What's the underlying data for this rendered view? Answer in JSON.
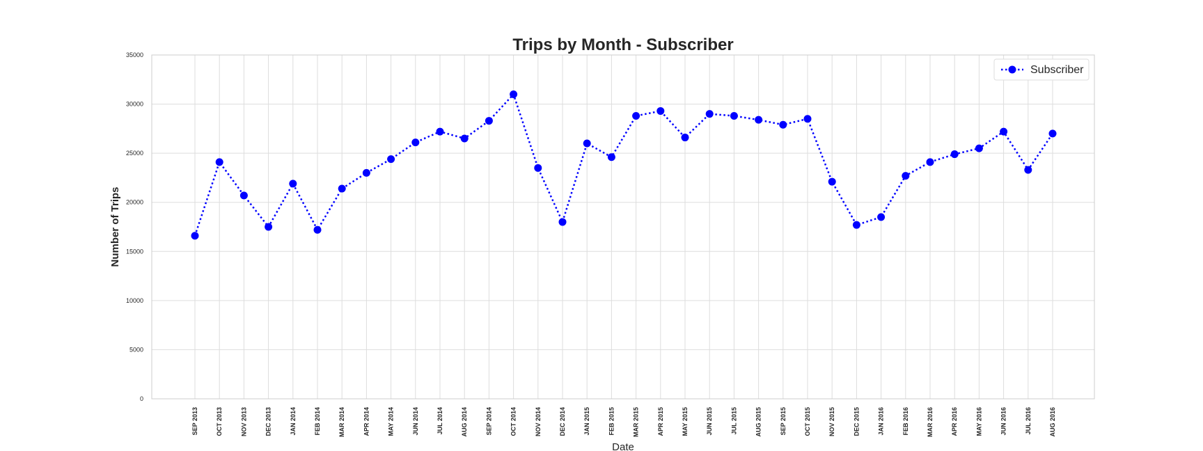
{
  "chart_data": {
    "type": "line",
    "title": "Trips by Month - Subscriber",
    "xlabel": "Date",
    "ylabel": "Number of Trips",
    "ylim": [
      0,
      35000
    ],
    "yticks": [
      "0",
      "5000",
      "10000",
      "15000",
      "20000",
      "25000",
      "30000",
      "35000"
    ],
    "grid": true,
    "legend_position": "top-right",
    "categories": [
      "SEP 2013",
      "OCT 2013",
      "NOV 2013",
      "DEC 2013",
      "JAN 2014",
      "FEB 2014",
      "MAR 2014",
      "APR 2014",
      "MAY 2014",
      "JUN 2014",
      "JUL 2014",
      "AUG 2014",
      "SEP 2014",
      "OCT 2014",
      "NOV 2014",
      "DEC 2014",
      "JAN 2015",
      "FEB 2015",
      "MAR 2015",
      "APR 2015",
      "MAY 2015",
      "JUN 2015",
      "JUL 2015",
      "AUG 2015",
      "SEP 2015",
      "OCT 2015",
      "NOV 2015",
      "DEC 2015",
      "JAN 2016",
      "FEB 2016",
      "MAR 2016",
      "APR 2016",
      "MAY 2016",
      "JUN 2016",
      "JUL 2016",
      "AUG 2016"
    ],
    "series": [
      {
        "name": "Subscriber",
        "color": "#0000ff",
        "line_style": "dotted",
        "marker": "circle",
        "values": [
          16600,
          24100,
          20700,
          17500,
          21900,
          17200,
          21400,
          23000,
          24400,
          26100,
          27200,
          26500,
          28300,
          31000,
          23500,
          18000,
          26000,
          24600,
          28800,
          29300,
          26600,
          29000,
          28800,
          28400,
          27900,
          28500,
          22100,
          17700,
          18500,
          22700,
          24100,
          24900,
          25500,
          27200,
          23300,
          27000
        ]
      }
    ]
  }
}
